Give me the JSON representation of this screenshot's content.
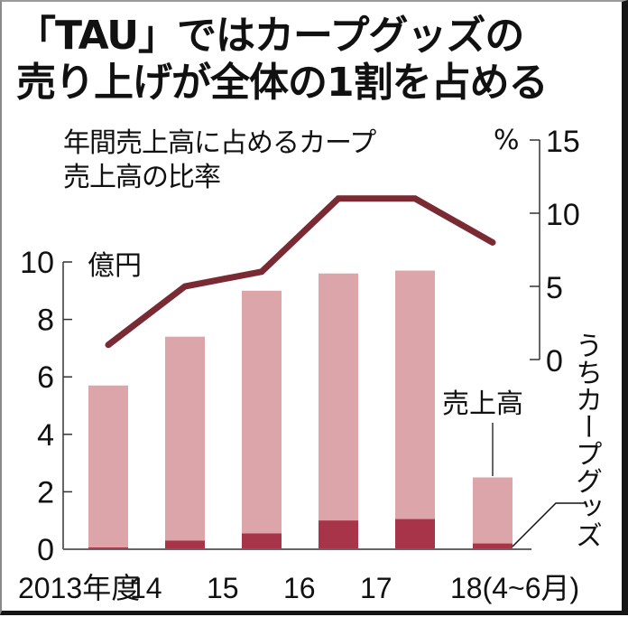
{
  "title": {
    "line1": "「TAU」ではカープグッズの",
    "line2": "売り上げが全体の1割を占める"
  },
  "subtitle": {
    "line1": "年間売上高に占めるカープ",
    "line2": "売上高の比率"
  },
  "left_axis": {
    "unit": "億円",
    "ticks": [
      "0",
      "2",
      "4",
      "6",
      "8",
      "10"
    ]
  },
  "right_axis": {
    "unit": "%",
    "ticks": [
      "0",
      "5",
      "10",
      "15"
    ]
  },
  "labels": {
    "sales": "売上高",
    "carp_goods": "うちカープグッズ"
  },
  "x_labels": [
    "2013年度",
    "14",
    "15",
    "16",
    "17",
    "18(4~6月)"
  ],
  "colors": {
    "sales_bar": "#dca5aa",
    "carp_bar": "#a8344a",
    "ratio_line": "#7a2a33",
    "axis": "#333333"
  },
  "chart_data": {
    "type": "bar+line",
    "title": "「TAU」ではカープグッズの売り上げが全体の1割を占める",
    "categories": [
      "2013年度",
      "14",
      "15",
      "16",
      "17",
      "18(4~6月)"
    ],
    "series": [
      {
        "name": "売上高",
        "type": "bar",
        "axis": "left",
        "unit": "億円",
        "values": [
          5.7,
          7.4,
          9.0,
          9.6,
          9.7,
          2.5
        ]
      },
      {
        "name": "うちカープグッズ",
        "type": "bar",
        "axis": "left",
        "unit": "億円",
        "values": [
          0.05,
          0.3,
          0.55,
          1.0,
          1.05,
          0.2
        ]
      },
      {
        "name": "年間売上高に占めるカープ売上高の比率",
        "type": "line",
        "axis": "right",
        "unit": "%",
        "values": [
          1,
          5,
          6,
          11,
          11,
          8
        ]
      }
    ],
    "ylabel_left": "億円",
    "ylim_left": [
      0,
      10
    ],
    "yticks_left": [
      0,
      2,
      4,
      6,
      8,
      10
    ],
    "ylabel_right": "%",
    "ylim_right": [
      0,
      15
    ],
    "yticks_right": [
      0,
      5,
      10,
      15
    ],
    "xlabel": "",
    "grid": false,
    "legend": "inline annotations"
  }
}
